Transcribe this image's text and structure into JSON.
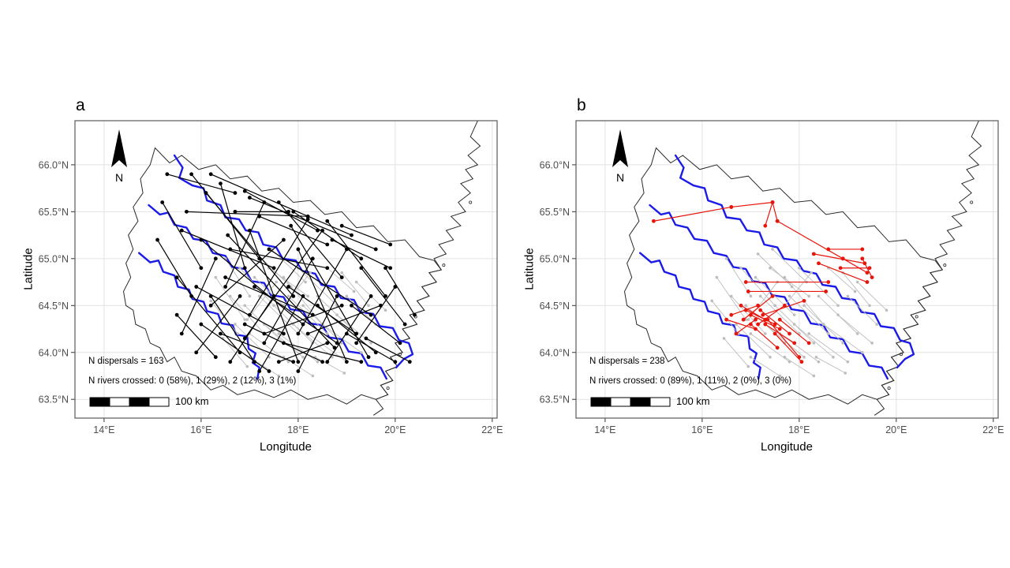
{
  "axes": {
    "x_label": "Longitude",
    "y_label": "Latitude",
    "x_ticks": [
      "14°E",
      "16°E",
      "18°E",
      "20°E",
      "22°E"
    ],
    "x_tick_lons": [
      14,
      16,
      18,
      20,
      22
    ],
    "y_ticks": [
      "66.0°N",
      "65.5°N",
      "65.0°N",
      "64.5°N",
      "64.0°N",
      "63.5°N"
    ],
    "y_tick_lats": [
      66.0,
      65.5,
      65.0,
      64.5,
      64.0,
      63.5
    ]
  },
  "panels": [
    {
      "label": "a",
      "series": "black",
      "stats_line1": "N dispersals = 163",
      "stats_line2": "N rivers crossed: 0 (58%), 1 (29%), 2 (12%), 3 (1%)",
      "scale_label": "100 km",
      "north_label": "N"
    },
    {
      "label": "b",
      "series": "red",
      "stats_line1": "N dispersals = 238",
      "stats_line2": "N rivers crossed: 0 (89%), 1 (11%), 2 (0%), 3 (0%)",
      "scale_label": "100 km",
      "north_label": "N"
    }
  ],
  "style": {
    "grid": "#e2e2e2",
    "outline": "#2a2a2a",
    "border": "#595959",
    "tick": "#333333",
    "tick_text": "#4d4d4d",
    "river": "#1b1be8",
    "gray": "#bdbdbd",
    "black": "#000000",
    "red": "#e8150b"
  },
  "map": {
    "boundary": [
      [
        15.05,
        66.18
      ],
      [
        15.35,
        66.02
      ],
      [
        15.6,
        66.1
      ],
      [
        15.95,
        65.95
      ],
      [
        16.3,
        66.0
      ],
      [
        16.6,
        65.85
      ],
      [
        16.95,
        65.88
      ],
      [
        17.25,
        65.72
      ],
      [
        17.6,
        65.75
      ],
      [
        17.9,
        65.6
      ],
      [
        18.25,
        65.62
      ],
      [
        18.55,
        65.47
      ],
      [
        18.9,
        65.5
      ],
      [
        19.2,
        65.33
      ],
      [
        19.55,
        65.35
      ],
      [
        19.85,
        65.18
      ],
      [
        20.2,
        65.2
      ],
      [
        20.5,
        65.02
      ],
      [
        20.8,
        64.98
      ],
      [
        20.95,
        64.88
      ],
      [
        20.7,
        64.85
      ],
      [
        20.85,
        64.75
      ],
      [
        20.55,
        64.7
      ],
      [
        20.7,
        64.6
      ],
      [
        20.45,
        64.55
      ],
      [
        20.6,
        64.45
      ],
      [
        20.3,
        64.4
      ],
      [
        20.45,
        64.3
      ],
      [
        20.15,
        64.25
      ],
      [
        20.3,
        64.15
      ],
      [
        20.0,
        64.1
      ],
      [
        20.15,
        64.0
      ],
      [
        19.9,
        63.95
      ],
      [
        20.05,
        63.85
      ],
      [
        19.8,
        63.8
      ],
      [
        19.95,
        63.7
      ],
      [
        19.7,
        63.65
      ],
      [
        19.85,
        63.55
      ],
      [
        19.6,
        63.5
      ],
      [
        19.3,
        63.55
      ],
      [
        19.0,
        63.45
      ],
      [
        18.6,
        63.55
      ],
      [
        18.2,
        63.5
      ],
      [
        17.85,
        63.6
      ],
      [
        17.5,
        63.52
      ],
      [
        17.1,
        63.6
      ],
      [
        16.75,
        63.55
      ],
      [
        16.45,
        63.65
      ],
      [
        16.2,
        63.6
      ],
      [
        15.9,
        63.75
      ],
      [
        15.6,
        63.8
      ],
      [
        15.45,
        63.95
      ],
      [
        15.3,
        63.9
      ],
      [
        15.15,
        64.05
      ],
      [
        14.95,
        64.1
      ],
      [
        14.85,
        64.25
      ],
      [
        14.65,
        64.3
      ],
      [
        14.6,
        64.45
      ],
      [
        14.45,
        64.5
      ],
      [
        14.4,
        64.65
      ],
      [
        14.55,
        64.8
      ],
      [
        14.45,
        64.95
      ],
      [
        14.6,
        65.1
      ],
      [
        14.5,
        65.25
      ],
      [
        14.7,
        65.4
      ],
      [
        14.6,
        65.55
      ],
      [
        14.8,
        65.7
      ],
      [
        14.75,
        65.85
      ],
      [
        14.95,
        66.0
      ]
    ],
    "coastline": [
      [
        21.7,
        66.47
      ],
      [
        21.55,
        66.3
      ],
      [
        21.75,
        66.2
      ],
      [
        21.5,
        66.1
      ],
      [
        21.7,
        66.0
      ],
      [
        21.45,
        65.95
      ],
      [
        21.6,
        65.85
      ],
      [
        21.35,
        65.8
      ],
      [
        21.55,
        65.7
      ],
      [
        21.3,
        65.6
      ],
      [
        21.45,
        65.5
      ],
      [
        21.15,
        65.45
      ],
      [
        21.35,
        65.35
      ],
      [
        21.05,
        65.3
      ],
      [
        21.2,
        65.2
      ],
      [
        20.9,
        65.15
      ],
      [
        21.05,
        65.05
      ],
      [
        20.8,
        65.0
      ],
      [
        20.95,
        64.88
      ],
      [
        20.7,
        64.85
      ],
      [
        20.85,
        64.75
      ],
      [
        20.55,
        64.7
      ],
      [
        20.7,
        64.6
      ],
      [
        20.45,
        64.55
      ],
      [
        20.6,
        64.45
      ],
      [
        20.3,
        64.4
      ],
      [
        20.45,
        64.3
      ],
      [
        20.15,
        64.25
      ],
      [
        20.3,
        64.15
      ],
      [
        20.0,
        64.1
      ],
      [
        20.15,
        64.0
      ],
      [
        19.9,
        63.95
      ],
      [
        20.05,
        63.85
      ],
      [
        19.8,
        63.8
      ],
      [
        19.95,
        63.7
      ],
      [
        19.7,
        63.65
      ],
      [
        19.85,
        63.55
      ],
      [
        19.6,
        63.5
      ],
      [
        19.75,
        63.4
      ],
      [
        19.55,
        63.33
      ]
    ],
    "islands": [
      [
        21.55,
        65.6
      ],
      [
        21.0,
        64.93
      ],
      [
        20.42,
        64.38
      ],
      [
        20.1,
        63.98
      ],
      [
        19.85,
        63.62
      ]
    ],
    "rivers": [
      [
        [
          15.45,
          66.1
        ],
        [
          15.62,
          65.97
        ],
        [
          15.55,
          65.86
        ],
        [
          15.82,
          65.78
        ],
        [
          16.05,
          65.75
        ],
        [
          16.12,
          65.62
        ],
        [
          16.4,
          65.57
        ],
        [
          16.5,
          65.44
        ],
        [
          16.78,
          65.42
        ],
        [
          16.92,
          65.3
        ],
        [
          17.18,
          65.28
        ],
        [
          17.28,
          65.15
        ],
        [
          17.55,
          65.12
        ],
        [
          17.68,
          65.0
        ],
        [
          17.95,
          64.98
        ],
        [
          18.08,
          64.87
        ],
        [
          18.35,
          64.84
        ],
        [
          18.48,
          64.72
        ],
        [
          18.75,
          64.7
        ],
        [
          18.88,
          64.58
        ],
        [
          19.15,
          64.56
        ],
        [
          19.28,
          64.43
        ],
        [
          19.55,
          64.41
        ],
        [
          19.68,
          64.28
        ],
        [
          19.95,
          64.26
        ],
        [
          20.08,
          64.13
        ],
        [
          20.28,
          64.1
        ],
        [
          20.36,
          63.98
        ],
        [
          20.18,
          63.93
        ],
        [
          20.02,
          63.84
        ]
      ],
      [
        [
          14.92,
          65.57
        ],
        [
          15.15,
          65.47
        ],
        [
          15.32,
          65.49
        ],
        [
          15.45,
          65.36
        ],
        [
          15.7,
          65.33
        ],
        [
          15.84,
          65.21
        ],
        [
          16.1,
          65.19
        ],
        [
          16.24,
          65.06
        ],
        [
          16.5,
          65.03
        ],
        [
          16.64,
          64.91
        ],
        [
          16.9,
          64.89
        ],
        [
          17.04,
          64.76
        ],
        [
          17.3,
          64.74
        ],
        [
          17.44,
          64.61
        ],
        [
          17.7,
          64.59
        ],
        [
          17.84,
          64.46
        ],
        [
          18.1,
          64.44
        ],
        [
          18.24,
          64.31
        ],
        [
          18.5,
          64.29
        ],
        [
          18.64,
          64.16
        ],
        [
          18.9,
          64.14
        ],
        [
          19.04,
          64.01
        ],
        [
          19.3,
          63.99
        ],
        [
          19.44,
          63.86
        ],
        [
          19.7,
          63.84
        ],
        [
          19.82,
          63.72
        ]
      ],
      [
        [
          14.72,
          65.06
        ],
        [
          14.95,
          64.96
        ],
        [
          15.12,
          64.98
        ],
        [
          15.22,
          64.86
        ],
        [
          15.45,
          64.82
        ],
        [
          15.52,
          64.7
        ],
        [
          15.75,
          64.67
        ],
        [
          15.82,
          64.57
        ],
        [
          16.05,
          64.54
        ],
        [
          16.12,
          64.44
        ],
        [
          16.35,
          64.41
        ],
        [
          16.42,
          64.31
        ],
        [
          16.65,
          64.29
        ],
        [
          16.72,
          64.19
        ],
        [
          16.95,
          64.17
        ],
        [
          16.98,
          64.04
        ],
        [
          17.12,
          63.99
        ],
        [
          17.06,
          63.89
        ],
        [
          17.2,
          63.84
        ],
        [
          17.16,
          63.72
        ]
      ]
    ]
  },
  "dispersals": {
    "gray": [
      [
        16.8,
        64.9,
        17.5,
        64.5
      ],
      [
        17.1,
        64.8,
        17.9,
        64.4
      ],
      [
        17.4,
        64.9,
        18.2,
        64.6
      ],
      [
        17.7,
        64.8,
        18.5,
        64.3
      ],
      [
        18.0,
        64.9,
        18.8,
        64.5
      ],
      [
        16.6,
        64.6,
        17.3,
        64.2
      ],
      [
        16.9,
        64.5,
        17.7,
        64.1
      ],
      [
        17.2,
        64.6,
        18.0,
        64.2
      ],
      [
        17.5,
        64.5,
        18.3,
        64.1
      ],
      [
        17.8,
        64.6,
        18.6,
        64.2
      ],
      [
        18.1,
        64.5,
        18.9,
        64.1
      ],
      [
        18.4,
        64.6,
        19.2,
        64.2
      ],
      [
        16.7,
        64.3,
        17.4,
        63.95
      ],
      [
        17.0,
        64.2,
        17.8,
        63.9
      ],
      [
        17.3,
        64.3,
        18.1,
        63.95
      ],
      [
        17.6,
        64.2,
        18.4,
        63.9
      ],
      [
        17.9,
        64.3,
        18.7,
        63.95
      ],
      [
        18.2,
        64.2,
        19.0,
        63.9
      ],
      [
        18.5,
        64.3,
        19.3,
        64.0
      ],
      [
        16.5,
        65.0,
        17.0,
        64.6
      ],
      [
        18.8,
        64.4,
        19.5,
        64.1
      ],
      [
        17.15,
        65.05,
        17.85,
        64.7
      ],
      [
        17.45,
        65.1,
        18.15,
        64.75
      ],
      [
        16.3,
        64.8,
        16.9,
        64.35
      ],
      [
        18.9,
        64.85,
        19.45,
        64.5
      ],
      [
        17.0,
        63.95,
        17.6,
        63.75
      ],
      [
        17.7,
        63.95,
        18.3,
        63.75
      ],
      [
        18.35,
        63.95,
        18.95,
        63.78
      ],
      [
        16.45,
        64.15,
        16.95,
        63.85
      ],
      [
        19.0,
        64.6,
        19.6,
        64.3
      ],
      [
        18.6,
        64.9,
        19.15,
        64.65
      ],
      [
        16.2,
        64.55,
        16.75,
        64.2
      ],
      [
        17.55,
        64.75,
        16.95,
        64.35
      ],
      [
        18.25,
        64.85,
        17.7,
        64.5
      ],
      [
        19.2,
        64.75,
        19.8,
        64.45
      ]
    ],
    "black": [
      [
        15.8,
        65.9,
        17.2,
        65.0
      ],
      [
        16.1,
        65.7,
        17.9,
        64.6
      ],
      [
        16.4,
        65.8,
        16.9,
        64.9
      ],
      [
        16.9,
        65.72,
        18.4,
        65.3
      ],
      [
        17.3,
        65.6,
        16.5,
        64.7
      ],
      [
        17.6,
        65.6,
        18.9,
        64.8
      ],
      [
        17.9,
        65.5,
        19.3,
        65.0
      ],
      [
        18.2,
        65.42,
        17.0,
        64.4
      ],
      [
        18.6,
        65.4,
        19.8,
        64.6
      ],
      [
        15.6,
        65.3,
        17.5,
        64.9
      ],
      [
        16.0,
        65.2,
        18.1,
        64.3
      ],
      [
        16.3,
        65.0,
        15.6,
        64.2
      ],
      [
        16.6,
        65.1,
        18.6,
        64.9
      ],
      [
        17.0,
        65.3,
        18.0,
        63.9
      ],
      [
        17.4,
        65.1,
        19.5,
        64.4
      ],
      [
        17.7,
        65.2,
        16.2,
        64.5
      ],
      [
        18.0,
        65.1,
        19.0,
        63.9
      ],
      [
        18.3,
        65.0,
        17.3,
        64.1
      ],
      [
        18.7,
        65.2,
        19.9,
        64.9
      ],
      [
        19.0,
        65.1,
        18.0,
        64.2
      ],
      [
        19.3,
        64.9,
        20.2,
        64.3
      ],
      [
        15.5,
        64.8,
        16.8,
        64.0
      ],
      [
        15.9,
        64.7,
        17.7,
        64.2
      ],
      [
        16.2,
        64.6,
        17.1,
        63.9
      ],
      [
        16.5,
        64.8,
        18.3,
        64.4
      ],
      [
        16.8,
        64.6,
        15.9,
        64.0
      ],
      [
        17.1,
        64.7,
        18.8,
        64.1
      ],
      [
        17.5,
        64.6,
        16.6,
        63.9
      ],
      [
        17.8,
        64.7,
        19.2,
        64.2
      ],
      [
        18.1,
        64.6,
        17.2,
        63.8
      ],
      [
        18.4,
        64.5,
        19.6,
        64.0
      ],
      [
        18.8,
        64.6,
        18.0,
        63.8
      ],
      [
        19.1,
        64.5,
        20.1,
        64.1
      ],
      [
        19.5,
        64.6,
        18.6,
        63.9
      ],
      [
        16.0,
        64.3,
        17.4,
        63.8
      ],
      [
        16.4,
        64.2,
        17.9,
        63.9
      ],
      [
        16.9,
        64.3,
        18.5,
        63.9
      ],
      [
        17.3,
        64.2,
        18.9,
        64.5
      ],
      [
        17.7,
        64.1,
        19.3,
        63.9
      ],
      [
        18.2,
        64.2,
        19.7,
        64.5
      ],
      [
        18.6,
        64.1,
        17.6,
        63.9
      ],
      [
        19.0,
        64.2,
        20.0,
        63.9
      ],
      [
        15.7,
        65.5,
        18.2,
        65.45
      ],
      [
        16.2,
        65.9,
        19.1,
        65.25
      ],
      [
        17.0,
        65.65,
        19.6,
        65.1
      ],
      [
        15.3,
        65.9,
        16.7,
        65.7
      ],
      [
        15.2,
        65.6,
        16.0,
        64.9
      ],
      [
        19.8,
        64.9,
        20.4,
        64.4
      ],
      [
        20.0,
        64.7,
        19.2,
        64.1
      ],
      [
        16.7,
        65.5,
        17.8,
        65.5
      ],
      [
        17.2,
        65.45,
        18.6,
        65.15
      ],
      [
        18.9,
        65.35,
        19.9,
        65.15
      ],
      [
        15.1,
        65.2,
        15.8,
        64.6
      ],
      [
        15.5,
        64.4,
        16.3,
        63.95
      ],
      [
        19.4,
        64.15,
        20.3,
        63.9
      ],
      [
        18.5,
        65.3,
        16.9,
        64.15
      ],
      [
        17.85,
        65.35,
        19.45,
        63.95
      ],
      [
        16.55,
        65.25,
        18.75,
        64.05
      ]
    ],
    "red": [
      [
        15.0,
        65.4,
        16.6,
        65.55
      ],
      [
        16.6,
        65.55,
        17.45,
        65.6
      ],
      [
        17.45,
        65.6,
        17.55,
        65.4
      ],
      [
        17.55,
        65.4,
        18.9,
        65.0
      ],
      [
        18.9,
        65.0,
        19.4,
        64.85
      ],
      [
        18.3,
        65.05,
        19.35,
        64.95
      ],
      [
        18.4,
        64.95,
        19.4,
        64.75
      ],
      [
        16.9,
        64.75,
        18.6,
        64.75
      ],
      [
        16.95,
        64.65,
        18.55,
        64.65
      ],
      [
        16.8,
        64.5,
        17.3,
        64.35
      ],
      [
        16.9,
        64.45,
        17.5,
        64.3
      ],
      [
        17.0,
        64.4,
        17.6,
        64.25
      ],
      [
        17.1,
        64.35,
        16.7,
        64.2
      ],
      [
        17.2,
        64.45,
        17.8,
        64.2
      ],
      [
        17.3,
        64.3,
        17.9,
        64.1
      ],
      [
        17.0,
        64.3,
        17.55,
        64.05
      ],
      [
        16.6,
        64.4,
        17.15,
        64.5
      ],
      [
        16.5,
        64.35,
        17.1,
        64.25
      ],
      [
        17.15,
        64.3,
        17.7,
        64.5
      ],
      [
        17.25,
        64.4,
        18.1,
        64.55
      ],
      [
        17.35,
        64.35,
        18.0,
        63.95
      ],
      [
        17.5,
        64.2,
        18.05,
        63.9
      ],
      [
        17.6,
        64.35,
        18.2,
        64.1
      ],
      [
        19.3,
        65.0,
        19.5,
        64.8
      ],
      [
        18.85,
        64.9,
        19.45,
        64.9
      ],
      [
        16.85,
        64.35,
        17.45,
        64.6
      ],
      [
        18.6,
        65.1,
        19.3,
        65.1
      ],
      [
        17.45,
        65.6,
        17.3,
        65.35
      ]
    ]
  }
}
